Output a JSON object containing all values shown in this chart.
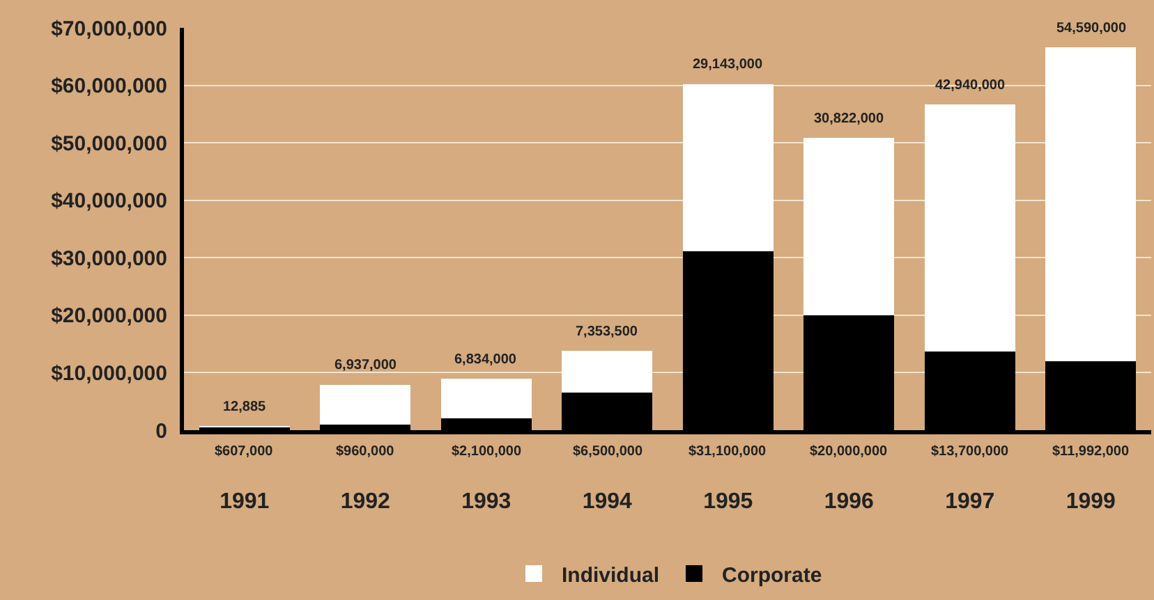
{
  "chart_data": {
    "type": "bar",
    "stacked": true,
    "categories": [
      "1991",
      "1992",
      "1993",
      "1994",
      "1995",
      "1996",
      "1997",
      "1999"
    ],
    "series": [
      {
        "name": "Corporate",
        "color": "#000000",
        "values": [
          607000,
          960000,
          2100000,
          6500000,
          31100000,
          20000000,
          13700000,
          11992000
        ],
        "value_labels": [
          "$607,000",
          "$960,000",
          "$2,100,000",
          "$6,500,000",
          "$31,100,000",
          "$20,000,000",
          "$13,700,000",
          "$11,992,000"
        ]
      },
      {
        "name": "Individual",
        "color": "#ffffff",
        "values": [
          12885,
          6937000,
          6834000,
          7353500,
          29143000,
          30822000,
          42940000,
          54590000
        ],
        "value_labels": [
          "12,885",
          "6,937,000",
          "6,834,000",
          "7,353,500",
          "29,143,000",
          "30,822,000",
          "42,940,000",
          "54,590,000"
        ]
      }
    ],
    "ylim": [
      0,
      70000000
    ],
    "yticks": [
      0,
      {
        "value": 10000000,
        "label": "$10,000,000"
      },
      {
        "value": 20000000,
        "label": "$20,000,000"
      },
      {
        "value": 30000000,
        "label": "$30,000,000"
      },
      {
        "value": 40000000,
        "label": "$40,000,000"
      },
      {
        "value": 50000000,
        "label": "$50,000,000"
      },
      {
        "value": 60000000,
        "label": "$60,000,000"
      },
      {
        "value": 70000000,
        "label": "$70,000,000"
      }
    ],
    "grid": "y",
    "legend": "bottom"
  }
}
